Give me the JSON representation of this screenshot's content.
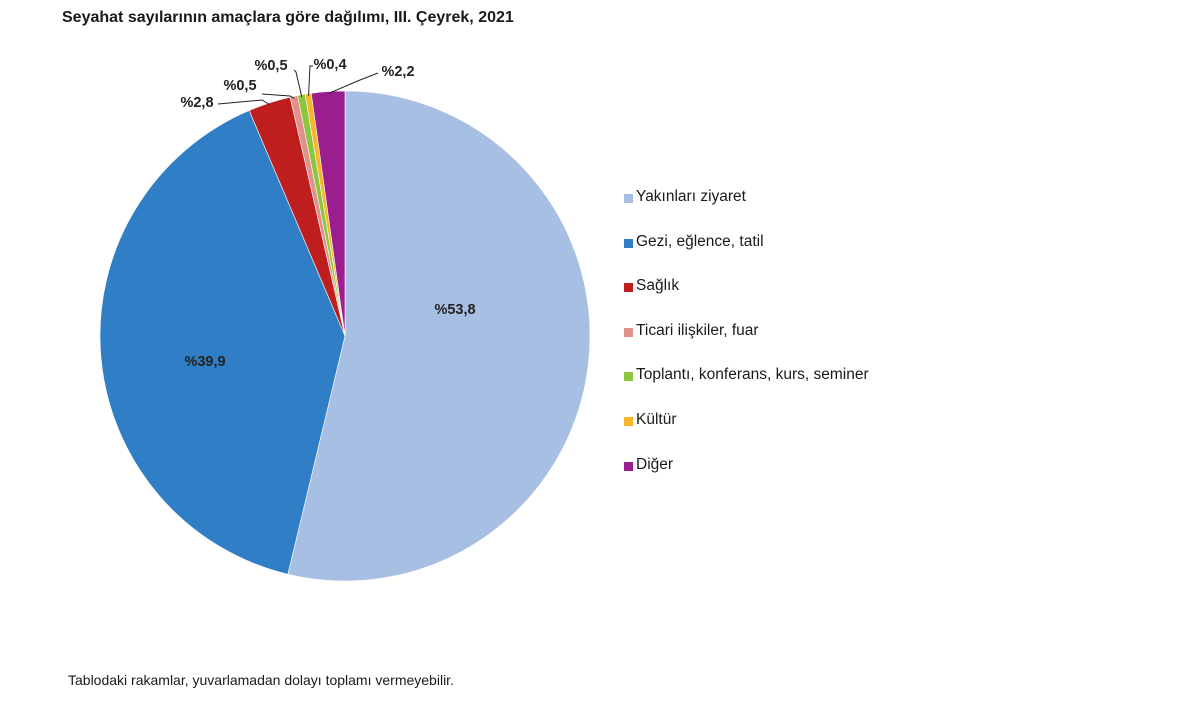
{
  "chart_data": {
    "type": "pie",
    "title": "Seyahat sayılarının amaçlara göre dağılımı, III. Çeyrek, 2021",
    "start_angle": "top",
    "direction": "clockwise",
    "legend_position": "right",
    "slices": [
      {
        "name": "Yakınları ziyaret",
        "value": 53.8,
        "label": "%53,8",
        "color": "#A7BFE3"
      },
      {
        "name": "Gezi, eğlence, tatil",
        "value": 39.9,
        "label": "%39,9",
        "color": "#2F7EC6"
      },
      {
        "name": "Sağlık",
        "value": 2.8,
        "label": "%2,8",
        "color": "#BF1E1E"
      },
      {
        "name": "Ticari ilişkiler, fuar",
        "value": 0.5,
        "label": "%0,5",
        "color": "#E0928A"
      },
      {
        "name": "Toplantı, konferans, kurs, seminer",
        "value": 0.5,
        "label": "%0,5",
        "color": "#8CC63E"
      },
      {
        "name": "Kültür",
        "value": 0.4,
        "label": "%0,4",
        "color": "#F7B62A"
      },
      {
        "name": "Diğer",
        "value": 2.2,
        "label": "%2,2",
        "color": "#9A1E8E"
      }
    ]
  },
  "footnote": "Tablodaki rakamlar, yuvarlamadan dolayı toplamı vermeyebilir."
}
